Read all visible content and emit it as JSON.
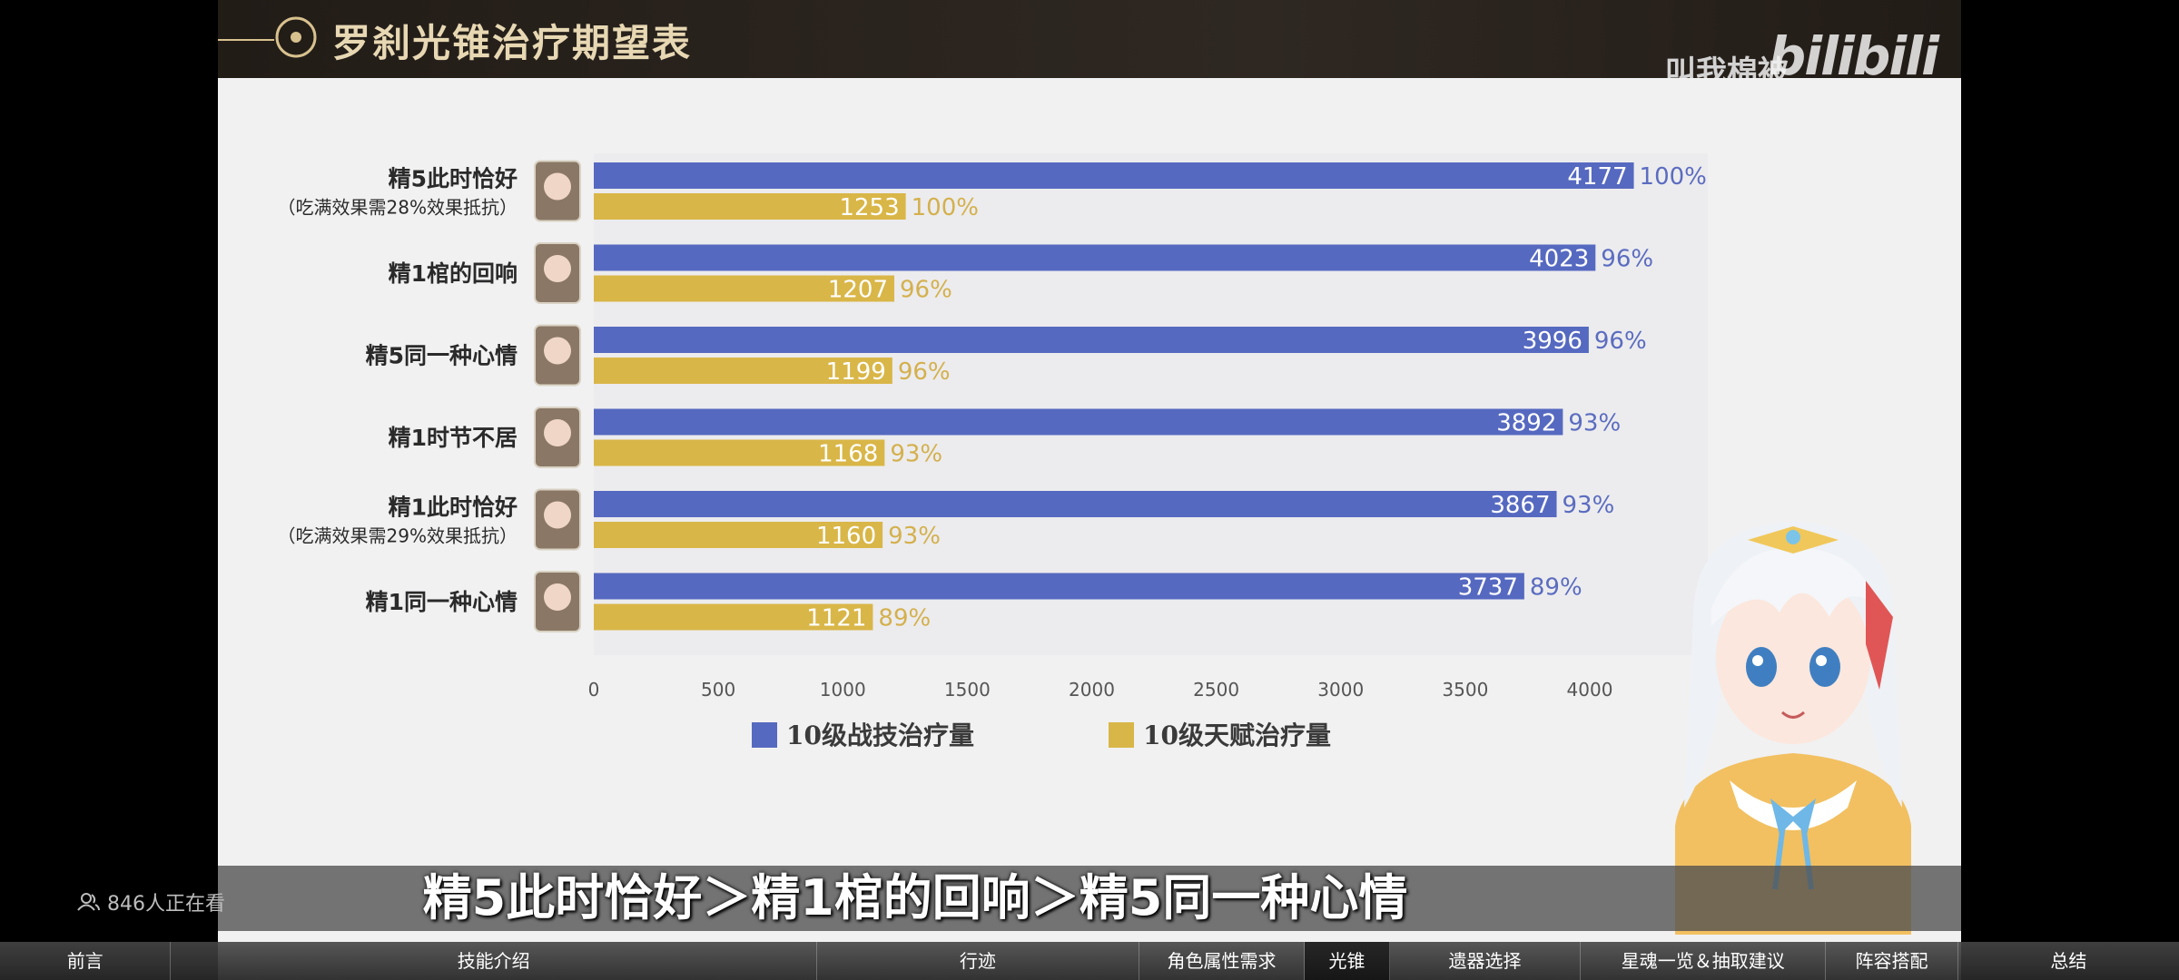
{
  "header": {
    "title": "罗刹光锥治疗期望表",
    "uploader": "叫我棉被",
    "logo": "bilibili"
  },
  "chart_data": {
    "type": "bar",
    "orientation": "horizontal",
    "categories": [
      {
        "label": "精5此时恰好",
        "sub": "（吃满效果需28%效果抵抗）"
      },
      {
        "label": "精1棺的回响",
        "sub": ""
      },
      {
        "label": "精5同一种心情",
        "sub": ""
      },
      {
        "label": "精1时节不居",
        "sub": ""
      },
      {
        "label": "精1此时恰好",
        "sub": "（吃满效果需29%效果抵抗）"
      },
      {
        "label": "精1同一种心情",
        "sub": ""
      }
    ],
    "series": [
      {
        "name": "10级战技治疗量",
        "color": "#5669c0",
        "values": [
          4177,
          4023,
          3996,
          3892,
          3867,
          3737
        ],
        "percent_labels": [
          "100%",
          "96%",
          "96%",
          "93%",
          "93%",
          "89%"
        ]
      },
      {
        "name": "10级天赋治疗量",
        "color": "#d9b648",
        "values": [
          1253,
          1207,
          1199,
          1168,
          1160,
          1121
        ],
        "percent_labels": [
          "100%",
          "96%",
          "96%",
          "93%",
          "93%",
          "89%"
        ]
      }
    ],
    "xticks": [
      "0",
      "500",
      "1000",
      "1500",
      "2000",
      "2500",
      "3000",
      "3500",
      "4000"
    ],
    "xlim": [
      0,
      4000
    ],
    "legend_position": "bottom",
    "grid": false
  },
  "subtitle": "精5此时恰好＞精1棺的回响＞精5同一种心情",
  "overlay": {
    "viewers": "846人正在看"
  },
  "nav": {
    "items": [
      {
        "label": "前言",
        "active": false
      },
      {
        "label": "技能介绍",
        "active": false
      },
      {
        "label": "行迹",
        "active": false
      },
      {
        "label": "角色属性需求",
        "active": false
      },
      {
        "label": "光锥",
        "active": true
      },
      {
        "label": "遗器选择",
        "active": false
      },
      {
        "label": "星魂一览＆抽取建议",
        "active": false
      },
      {
        "label": "阵容搭配",
        "active": false
      },
      {
        "label": "总结",
        "active": false
      }
    ]
  },
  "colors": {
    "blue": "#5669c0",
    "gold": "#d9b648",
    "title_gold": "#e7d8b3"
  }
}
